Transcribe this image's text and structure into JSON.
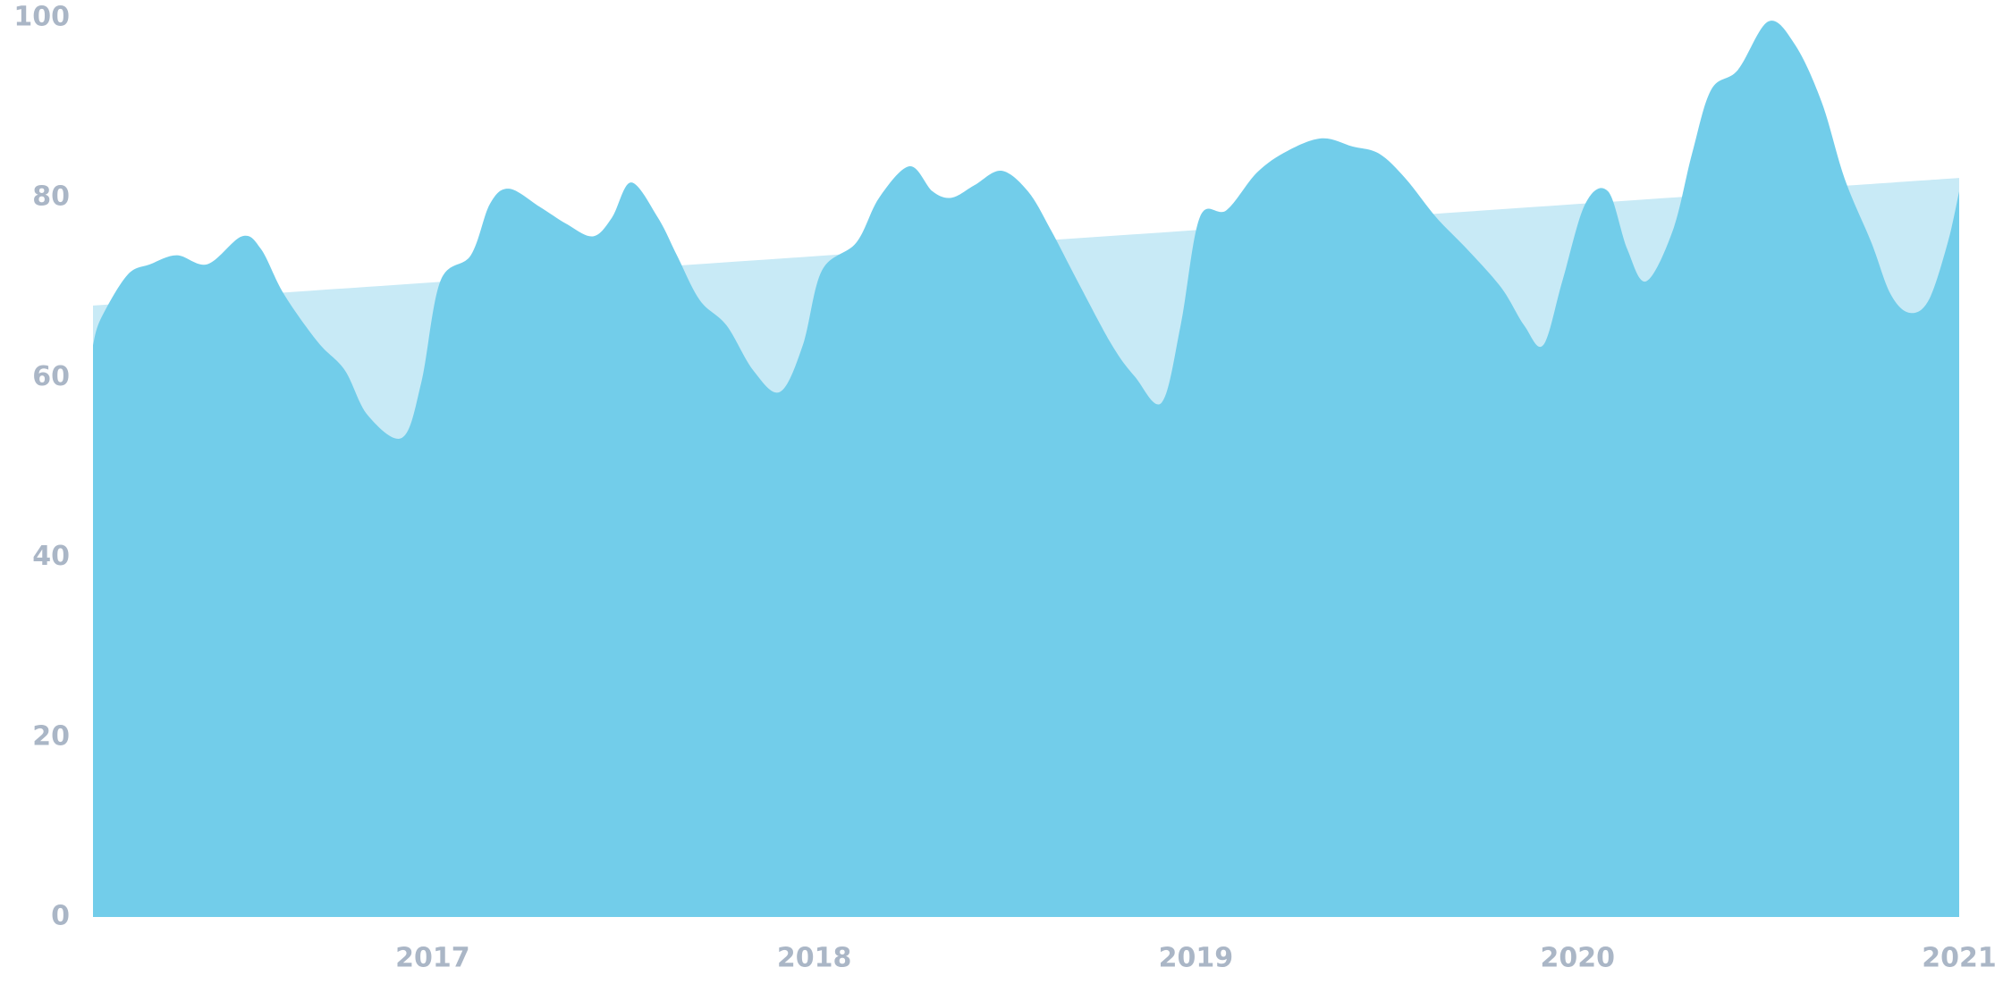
{
  "chart_data": {
    "type": "area",
    "xlim": [
      2016.11,
      2021
    ],
    "xticks": [
      2017,
      2018,
      2019,
      2020,
      2021
    ],
    "ylim": [
      0,
      100
    ],
    "yticks": [
      0,
      20,
      40,
      60,
      80,
      100
    ],
    "series": [
      {
        "color": "#c8eaf6",
        "x": [
          2016.11,
          2021
        ],
        "values": [
          68,
          82.2
        ]
      },
      {
        "color": "#72cdea",
        "x": [
          2016.11,
          2016.13,
          2016.2,
          2016.26,
          2016.33,
          2016.41,
          2016.5,
          2016.55,
          2016.61,
          2016.7,
          2016.77,
          2016.83,
          2016.92,
          2016.97,
          2017.02,
          2017.1,
          2017.15,
          2017.2,
          2017.28,
          2017.35,
          2017.42,
          2017.47,
          2017.52,
          2017.59,
          2017.64,
          2017.7,
          2017.77,
          2017.84,
          2017.91,
          2017.97,
          2018.02,
          2018.11,
          2018.17,
          2018.25,
          2018.31,
          2018.36,
          2018.42,
          2018.49,
          2018.56,
          2018.62,
          2018.69,
          2018.78,
          2018.84,
          2018.91,
          2018.96,
          2019.01,
          2019.08,
          2019.16,
          2019.24,
          2019.33,
          2019.41,
          2019.48,
          2019.55,
          2019.63,
          2019.71,
          2019.8,
          2019.86,
          2019.91,
          2019.96,
          2020.02,
          2020.08,
          2020.13,
          2020.18,
          2020.25,
          2020.3,
          2020.35,
          2020.42,
          2020.5,
          2020.57,
          2020.64,
          2020.7,
          2020.77,
          2020.82,
          2020.87,
          2020.92,
          2020.97,
          2021
        ],
        "values": [
          63.6,
          66.5,
          71.4,
          72.6,
          73.6,
          72.6,
          75.7,
          74.3,
          69.3,
          63.9,
          60.8,
          55.8,
          53.3,
          59.4,
          70.7,
          73.6,
          79.3,
          81,
          79,
          77.1,
          75.7,
          77.8,
          81.7,
          77.8,
          73.6,
          68.6,
          65.8,
          60.8,
          58.4,
          63.6,
          71.9,
          75,
          80,
          83.5,
          80.7,
          80,
          81.4,
          83,
          80.7,
          76.4,
          70.7,
          63.6,
          60.1,
          57.2,
          65.8,
          77.8,
          78.6,
          82.8,
          85.2,
          86.6,
          85.7,
          84.9,
          82.1,
          77.8,
          74.3,
          70,
          65.8,
          63.6,
          70.7,
          79.3,
          80.7,
          74.3,
          70.7,
          76.4,
          84.9,
          92,
          94.2,
          99.6,
          97,
          90.6,
          82.1,
          75,
          69.3,
          67.2,
          68.6,
          75,
          80.7
        ]
      }
    ]
  }
}
